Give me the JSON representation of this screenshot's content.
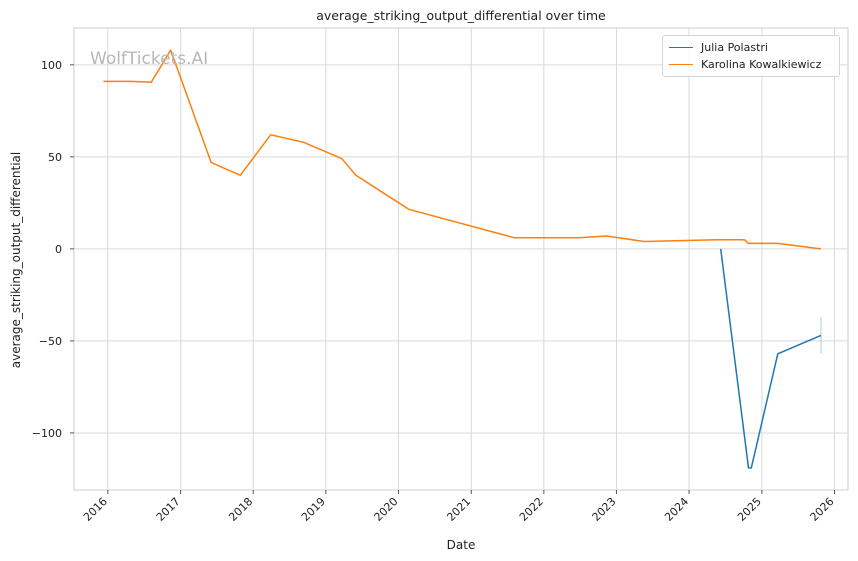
{
  "chart_data": {
    "type": "line",
    "title": "average_striking_output_differential over time",
    "xlabel": "Date",
    "ylabel": "average_striking_output_differential",
    "xlim": [
      "2015-07-15",
      "2026-03-10"
    ],
    "ylim": [
      -131,
      120
    ],
    "grid": true,
    "legend_position": "top-right",
    "watermark": "WolfTickets.AI",
    "x_ticks": [
      "2016",
      "2017",
      "2018",
      "2019",
      "2020",
      "2021",
      "2022",
      "2023",
      "2024",
      "2025",
      "2026"
    ],
    "y_ticks": [
      100,
      50,
      0,
      -50,
      -100
    ],
    "y_tick_labels": [
      "100",
      "50",
      "0",
      "−50",
      "−100"
    ],
    "series": [
      {
        "name": "Julia Polastri",
        "color": "#1f77b4",
        "points": [
          {
            "x": "2024-06-08",
            "y": 0
          },
          {
            "x": "2024-10-26",
            "y": -119
          },
          {
            "x": "2024-11-09",
            "y": -119
          },
          {
            "x": "2025-03-22",
            "y": -57
          },
          {
            "x": "2025-10-25",
            "y": -47
          }
        ]
      },
      {
        "name": "Karolina Kowalkiewicz",
        "color": "#ff7f0e",
        "points": [
          {
            "x": "2015-12-10",
            "y": 91
          },
          {
            "x": "2016-04-30",
            "y": 91
          },
          {
            "x": "2016-08-06",
            "y": 90.5
          },
          {
            "x": "2016-11-12",
            "y": 108
          },
          {
            "x": "2017-06-03",
            "y": 47
          },
          {
            "x": "2017-10-28",
            "y": 40
          },
          {
            "x": "2018-03-30",
            "y": 62
          },
          {
            "x": "2018-09-08",
            "y": 58
          },
          {
            "x": "2019-03-23",
            "y": 49
          },
          {
            "x": "2019-06-01",
            "y": 40
          },
          {
            "x": "2020-02-22",
            "y": 21.5
          },
          {
            "x": "2021-08-07",
            "y": 6
          },
          {
            "x": "2022-06-25",
            "y": 6
          },
          {
            "x": "2022-11-12",
            "y": 7
          },
          {
            "x": "2023-05-20",
            "y": 4
          },
          {
            "x": "2024-05-18",
            "y": 5
          },
          {
            "x": "2024-10-05",
            "y": 5
          },
          {
            "x": "2024-10-26",
            "y": 3
          },
          {
            "x": "2025-03-22",
            "y": 3
          },
          {
            "x": "2025-10-25",
            "y": 0
          }
        ]
      }
    ],
    "error_bar": {
      "series": "Julia Polastri",
      "x": "2025-10-25",
      "low": -57,
      "high": -37
    }
  }
}
